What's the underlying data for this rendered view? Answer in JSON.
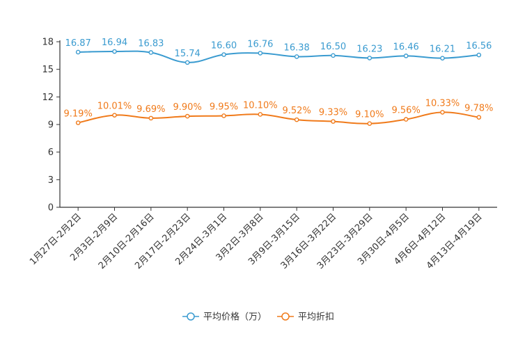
{
  "chart_data": {
    "type": "line",
    "title": "",
    "xlabel": "",
    "ylabel": "",
    "ylim": [
      0,
      18
    ],
    "yticks": [
      0,
      3,
      6,
      9,
      12,
      15,
      18
    ],
    "grid": false,
    "legend_position": "bottom",
    "categories": [
      "1月27日-2月2日",
      "2月3日-2月9日",
      "2月10日-2月16日",
      "2月17日-2月23日",
      "2月24日-3月1日",
      "3月2日-3月8日",
      "3月9日-3月15日",
      "3月16日-3月22日",
      "3月23日-3月29日",
      "3月30日-4月5日",
      "4月6日-4月12日",
      "4月13日-4月19日"
    ],
    "series": [
      {
        "name": "平均价格（万）",
        "color": "#3a9bd0",
        "values": [
          16.87,
          16.94,
          16.83,
          15.74,
          16.6,
          16.76,
          16.38,
          16.5,
          16.23,
          16.46,
          16.21,
          16.56
        ],
        "labels": [
          "16.87",
          "16.94",
          "16.83",
          "15.74",
          "16.60",
          "16.76",
          "16.38",
          "16.50",
          "16.23",
          "16.46",
          "16.21",
          "16.56"
        ]
      },
      {
        "name": "平均折扣",
        "color": "#f07a1a",
        "values": [
          9.19,
          10.01,
          9.69,
          9.9,
          9.95,
          10.1,
          9.52,
          9.33,
          9.1,
          9.56,
          10.33,
          9.78
        ],
        "labels": [
          "9.19%",
          "10.01%",
          "9.69%",
          "9.90%",
          "9.95%",
          "10.10%",
          "9.52%",
          "9.33%",
          "9.10%",
          "9.56%",
          "10.33%",
          "9.78%"
        ]
      }
    ]
  }
}
